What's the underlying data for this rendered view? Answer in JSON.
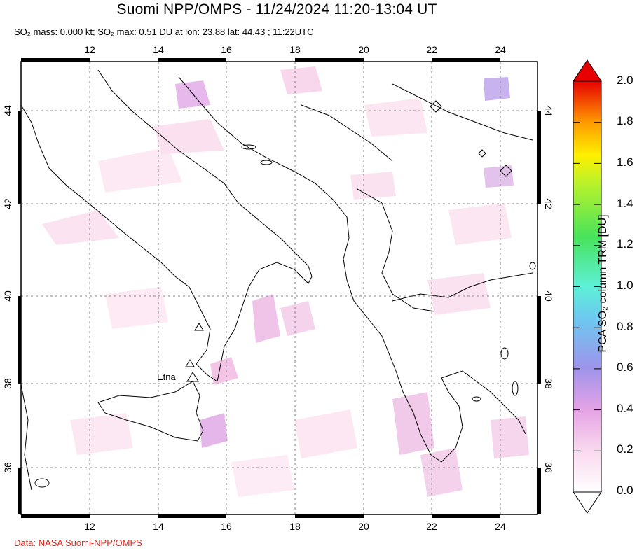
{
  "header": {
    "title": "Suomi NPP/OMPS - 11/24/2024 11:20-13:04 UT",
    "subtitle": "SO₂ mass: 0.000 kt; SO₂ max: 0.51 DU at lon: 23.88 lat: 44.43 ; 11:22UTC"
  },
  "map": {
    "lon_range": [
      10,
      25
    ],
    "lat_range": [
      35,
      45
    ],
    "lon_ticks": [
      "12",
      "14",
      "16",
      "18",
      "20",
      "22",
      "24"
    ],
    "lat_ticks": [
      "36",
      "38",
      "40",
      "42",
      "44"
    ],
    "grid": "dotted",
    "volcano_label": "Etna",
    "volcano_icon": "triangle-icon",
    "max_marker_icon": "diamond-icon"
  },
  "colorbar": {
    "title": "PCA SO₂ column TRM [DU]",
    "ticks": [
      "0.0",
      "0.2",
      "0.4",
      "0.6",
      "0.8",
      "1.0",
      "1.2",
      "1.4",
      "1.6",
      "1.8",
      "2.0"
    ],
    "min": 0.0,
    "max": 2.0,
    "colors": [
      "#ffffff",
      "#f9d9ee",
      "#e6a3e6",
      "#9f93ea",
      "#6ec7f0",
      "#5ef0d8",
      "#47e35c",
      "#b8f22a",
      "#fff000",
      "#ff9a00",
      "#e60000"
    ]
  },
  "footer": {
    "credit": "Data: NASA Suomi-NPP/OMPS"
  }
}
